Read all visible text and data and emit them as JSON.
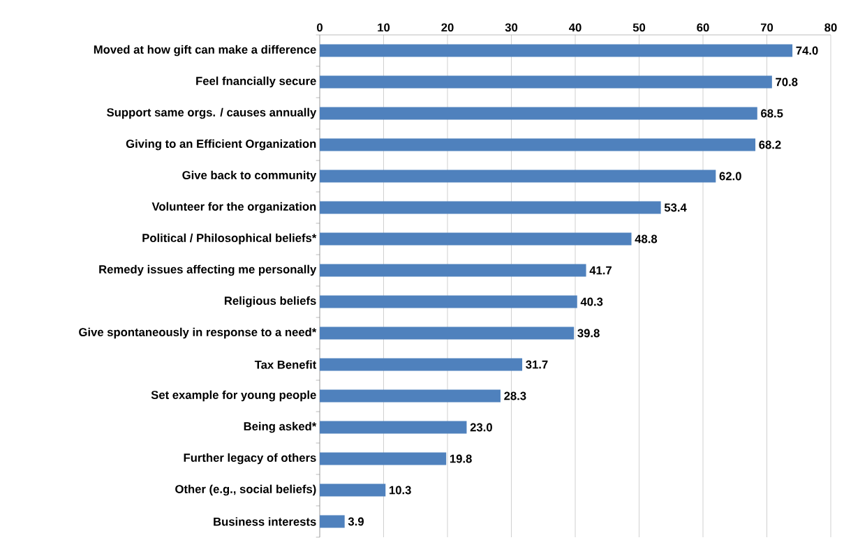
{
  "chart_data": {
    "type": "bar",
    "orientation": "horizontal",
    "color": "#4f81bd",
    "categories": [
      "Moved at how gift can make a difference",
      "Feel fnancially secure",
      "Support same orgs. / causes annually",
      "Giving to an Efficient Organization",
      "Give back to community",
      "Volunteer for the organization",
      "Political / Philosophical beliefs*",
      "Remedy issues affecting me personally",
      "Religious beliefs",
      "Give spontaneously in response to a need*",
      "Tax Benefit",
      "Set example for young people",
      "Being asked*",
      "Further legacy of others",
      "Other (e.g., social beliefs)",
      "Business interests"
    ],
    "values": [
      74.0,
      70.8,
      68.5,
      68.2,
      62.0,
      53.4,
      48.8,
      41.7,
      40.3,
      39.8,
      31.7,
      28.3,
      23.0,
      19.8,
      10.3,
      3.9
    ],
    "value_labels": [
      "74.0",
      "70.8",
      "68.5",
      "68.2",
      "62.0",
      "53.4",
      "48.8",
      "41.7",
      "40.3",
      "39.8",
      "31.7",
      "28.3",
      "23.0",
      "19.8",
      "10.3",
      "3.9"
    ],
    "xlim": [
      0,
      80
    ],
    "xticks": [
      0,
      10,
      20,
      30,
      40,
      50,
      60,
      70,
      80
    ],
    "grid": "x"
  }
}
